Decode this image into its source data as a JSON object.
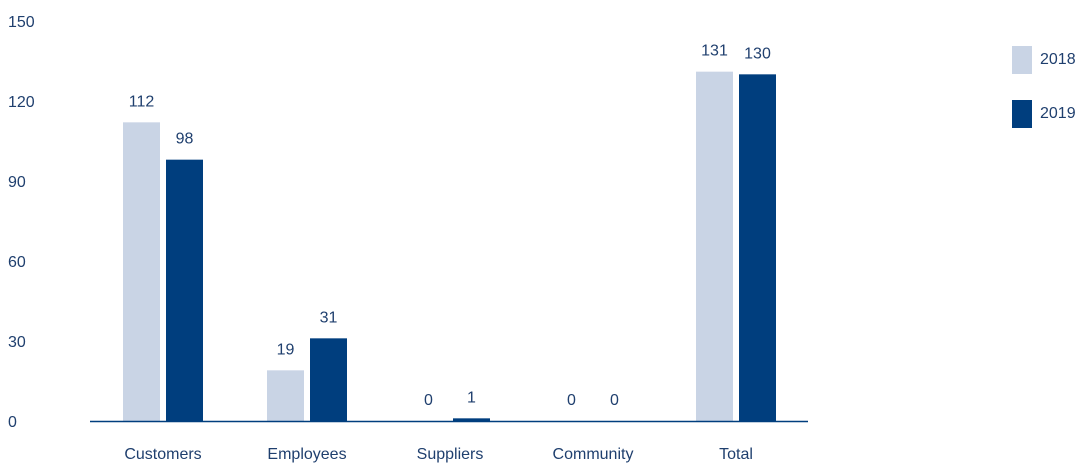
{
  "chart_data": {
    "type": "bar",
    "categories": [
      "Customers",
      "Employees",
      "Suppliers",
      "Community",
      "Total"
    ],
    "series": [
      {
        "name": "2018",
        "values": [
          112,
          19,
          0,
          0,
          131
        ],
        "color": "#c9d4e5"
      },
      {
        "name": "2019",
        "values": [
          98,
          31,
          1,
          0,
          130
        ],
        "color": "#003e7e"
      }
    ],
    "yticks": [
      0,
      30,
      60,
      90,
      120,
      150
    ],
    "ylim": [
      0,
      150
    ],
    "grid": false,
    "legend_position": "top-right",
    "axis_color": "#003e7e",
    "text_color": "#1f3f6e"
  }
}
